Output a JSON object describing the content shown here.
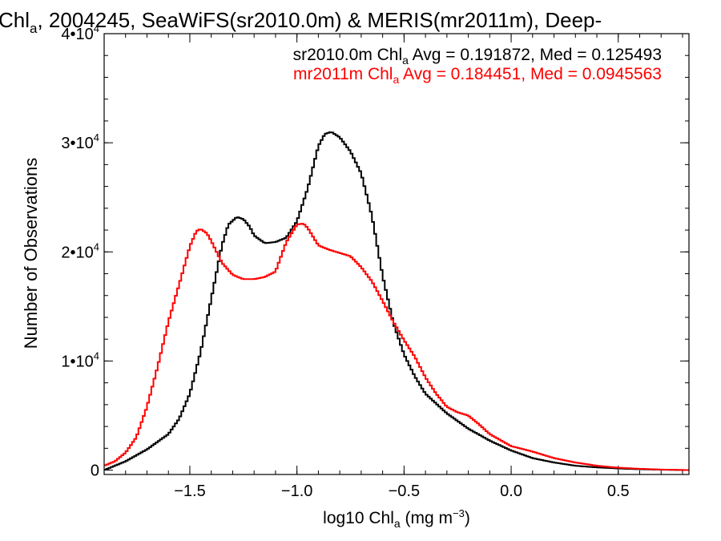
{
  "chart_data": {
    "type": "line",
    "title": {
      "base": "Chl",
      "sub": "a",
      "rest": ", 2004245, SeaWiFS(sr2010.0m) & MERIS(mr2011m), Deep-"
    },
    "xlabel": {
      "pre": "log10 Chl",
      "sub": "a",
      "mid": " (mg m",
      "sup": "−3",
      "post": ")"
    },
    "ylabel": "Number of Observations",
    "xlim": [
      -1.9,
      0.83
    ],
    "ylim": [
      -400,
      40000
    ],
    "x_ticks": [
      {
        "value": -1.5,
        "label": "−1.5"
      },
      {
        "value": -1.0,
        "label": "−1.0"
      },
      {
        "value": -0.5,
        "label": "−0.5"
      },
      {
        "value": 0.0,
        "label": "0.0"
      },
      {
        "value": 0.5,
        "label": "0.5"
      }
    ],
    "y_ticks": [
      {
        "value": 0,
        "base": "0",
        "sup": ""
      },
      {
        "value": 10000,
        "base": "1•10",
        "sup": "4"
      },
      {
        "value": 20000,
        "base": "2•10",
        "sup": "4"
      },
      {
        "value": 30000,
        "base": "3•10",
        "sup": "4"
      },
      {
        "value": 40000,
        "base": "4•10",
        "sup": "4"
      }
    ],
    "legend": [
      {
        "pre": "sr2010.0m Chl",
        "sub": "a",
        "post": " Avg = 0.191872, Med = 0.125493",
        "color": "#000000"
      },
      {
        "pre": "mr2011m Chl",
        "sub": "a",
        "post": " Avg = 0.184451, Med = 0.0945563",
        "color": "#ff0000"
      }
    ],
    "series": [
      {
        "color": "#000000",
        "x": [
          -1.9,
          -1.8,
          -1.7,
          -1.6,
          -1.55,
          -1.5,
          -1.45,
          -1.4,
          -1.35,
          -1.32,
          -1.28,
          -1.25,
          -1.22,
          -1.2,
          -1.15,
          -1.1,
          -1.05,
          -1.0,
          -0.95,
          -0.9,
          -0.87,
          -0.84,
          -0.8,
          -0.75,
          -0.7,
          -0.65,
          -0.6,
          -0.55,
          -0.5,
          -0.45,
          -0.4,
          -0.3,
          -0.2,
          -0.1,
          0.0,
          0.1,
          0.2,
          0.3,
          0.4,
          0.5,
          0.6,
          0.7,
          0.83
        ],
        "y": [
          0,
          800,
          1900,
          3300,
          4700,
          7000,
          10800,
          15700,
          20600,
          22500,
          23200,
          23000,
          22300,
          21500,
          20800,
          20900,
          21300,
          22800,
          25800,
          29700,
          30800,
          31000,
          30500,
          29200,
          27200,
          23300,
          17800,
          13500,
          10600,
          8600,
          7000,
          5200,
          3800,
          2700,
          1800,
          1100,
          700,
          400,
          250,
          150,
          80,
          40,
          0
        ]
      },
      {
        "color": "#ff0000",
        "x": [
          -1.9,
          -1.85,
          -1.8,
          -1.75,
          -1.7,
          -1.65,
          -1.6,
          -1.55,
          -1.5,
          -1.47,
          -1.45,
          -1.42,
          -1.4,
          -1.35,
          -1.3,
          -1.25,
          -1.2,
          -1.15,
          -1.1,
          -1.05,
          -1.0,
          -0.97,
          -0.95,
          -0.9,
          -0.85,
          -0.8,
          -0.75,
          -0.7,
          -0.65,
          -0.6,
          -0.55,
          -0.5,
          -0.45,
          -0.4,
          -0.35,
          -0.3,
          -0.25,
          -0.2,
          -0.15,
          -0.1,
          0.0,
          0.1,
          0.2,
          0.3,
          0.4,
          0.5,
          0.6,
          0.7,
          0.83
        ],
        "y": [
          400,
          800,
          1600,
          3000,
          5800,
          9500,
          13600,
          17000,
          20500,
          21900,
          22100,
          21700,
          21000,
          19000,
          17900,
          17500,
          17500,
          17700,
          18200,
          20900,
          22500,
          22600,
          22200,
          20600,
          20200,
          19900,
          19600,
          18600,
          17300,
          15500,
          13600,
          11900,
          10400,
          8500,
          7000,
          5800,
          5300,
          5000,
          4200,
          3300,
          2200,
          1700,
          1100,
          700,
          400,
          220,
          120,
          50,
          0
        ]
      }
    ]
  }
}
